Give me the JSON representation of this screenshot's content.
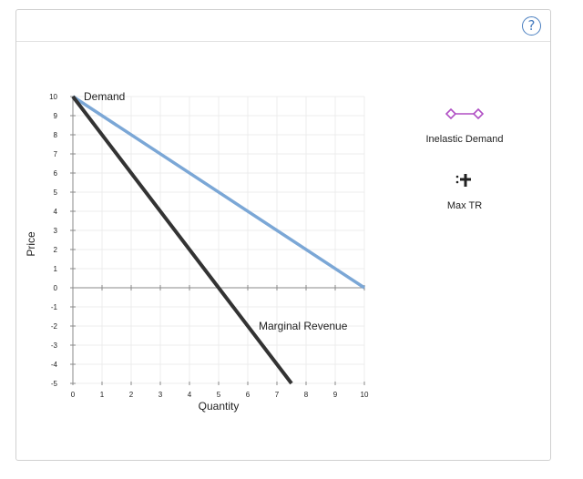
{
  "help": {
    "label": "?"
  },
  "tools": [
    {
      "label": "Inelastic Demand",
      "icon": "diamond-line-icon",
      "color": "#b04fc4"
    },
    {
      "label": "Max TR",
      "icon": "point-plus-icon",
      "color": "#222222"
    }
  ],
  "chart_data": {
    "type": "line",
    "xlabel": "Quantity",
    "ylabel": "Price",
    "xlim": [
      0,
      10
    ],
    "ylim": [
      -5,
      10
    ],
    "x_ticks": [
      "0",
      "1",
      "2",
      "3",
      "4",
      "5",
      "6",
      "7",
      "8",
      "9",
      "10"
    ],
    "y_ticks": [
      "-5",
      "-4",
      "-3",
      "-2",
      "-1",
      "0",
      "1",
      "2",
      "3",
      "4",
      "5",
      "6",
      "7",
      "8",
      "9",
      "10"
    ],
    "grid": true,
    "series": [
      {
        "name": "Demand",
        "color": "#7ba7d6",
        "points": [
          [
            0,
            10
          ],
          [
            10,
            0
          ]
        ]
      },
      {
        "name": "Marginal Revenue",
        "color": "#333333",
        "points": [
          [
            0,
            10
          ],
          [
            7.5,
            -5
          ]
        ]
      }
    ]
  }
}
